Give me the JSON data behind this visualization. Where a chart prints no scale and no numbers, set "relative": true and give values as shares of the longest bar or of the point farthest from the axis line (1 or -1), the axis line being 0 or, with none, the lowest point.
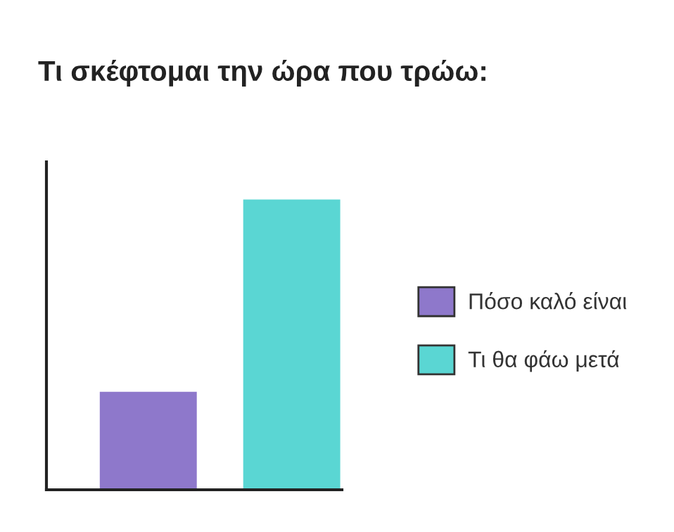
{
  "chart_data": {
    "type": "bar",
    "title": "Τι σκέφτομαι την ώρα που τρώω:",
    "relative": true,
    "categories": [
      null,
      null
    ],
    "stacked": true,
    "legend": "right",
    "series": [
      {
        "name": "Πόσο καλό είναι",
        "color": "#8e78cb",
        "values": [
          0.34,
          null
        ]
      },
      {
        "name": "Τι θα φάω μετά",
        "color": "#5ad6d3",
        "values": [
          null,
          1
        ]
      }
    ]
  }
}
